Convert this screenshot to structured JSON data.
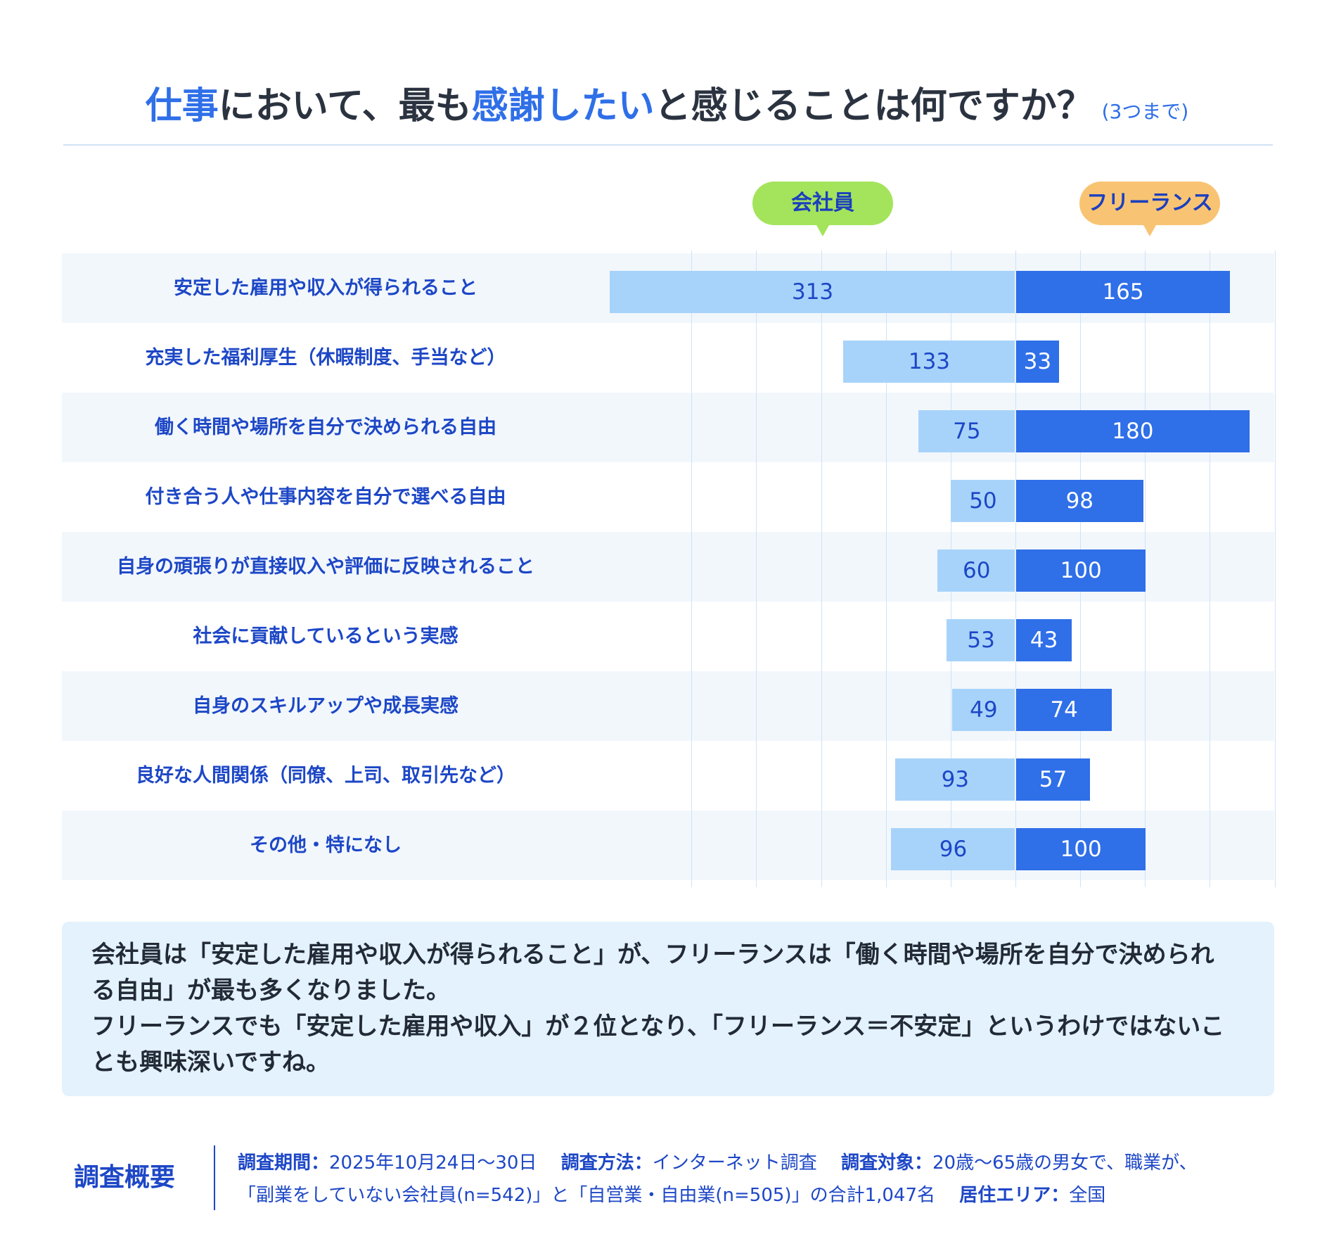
{
  "title": {
    "part1": "仕事",
    "part2": "において、最も",
    "part3": "感謝したい",
    "part4": "と感じることは何ですか？",
    "sub": "(3つまで)"
  },
  "chart_data": {
    "type": "bar",
    "categories": [
      "安定した雇用や収入が得られること",
      "充実した福利厚生（休暇制度、手当など）",
      "働く時間や場所を自分で決められる自由",
      "付き合う人や仕事内容を自分で選べる自由",
      "自身の頑張りが直接収入や評価に反映されること",
      "社会に貢献しているという実感",
      "自身のスキルアップや成長実感",
      "良好な人間関係（同僚、上司、取引先など）",
      "その他・特になし"
    ],
    "series": [
      {
        "name": "会社員",
        "values": [
          313,
          133,
          75,
          50,
          60,
          53,
          49,
          93,
          96
        ],
        "color": "#a7d3fa"
      },
      {
        "name": "フリーランス",
        "values": [
          165,
          33,
          180,
          98,
          100,
          43,
          74,
          57,
          100
        ],
        "color": "#2f6fe8"
      }
    ],
    "orientation": "horizontal-diverging",
    "grid": true,
    "legend_position": "top"
  },
  "note": {
    "line1": "会社員は「安定した雇用や収入が得られること」が、フリーランスは「働く時間や場所を自分で決められ",
    "line2": "る自由」が最も多くなりました。",
    "line3": "フリーランスでも「安定した雇用や収入」が２位となり、「フリーランス＝不安定」というわけではないこ",
    "line4": "とも興味深いですね。"
  },
  "survey": {
    "heading": "調査概要",
    "period_label": "調査期間：",
    "period": "2025年10月24日～30日",
    "method_label": "調査方法：",
    "method": "インターネット調査",
    "target_label": "調査対象：",
    "target_line1": "20歳～65歳の男女で、職業が、",
    "target_line2": "「副業をしていない会社員(n=542)」と「自営業・自由業(n=505)」の合計1,047名",
    "area_label": "居住エリア：",
    "area": "全国"
  }
}
